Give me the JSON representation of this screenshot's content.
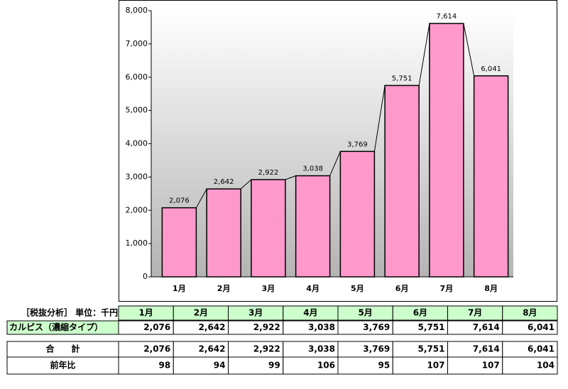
{
  "chart_data": {
    "type": "bar",
    "categories": [
      "1月",
      "2月",
      "3月",
      "4月",
      "5月",
      "6月",
      "7月",
      "8月"
    ],
    "values": [
      2076,
      2642,
      2922,
      3038,
      3769,
      5751,
      7614,
      6041
    ],
    "value_labels": [
      "2,076",
      "2,642",
      "2,922",
      "3,038",
      "3,769",
      "5,751",
      "7,614",
      "6,041"
    ],
    "color": "#ff99cc",
    "ylim": [
      0,
      8000
    ],
    "yticks": [
      0,
      {
        "value": 1000,
        "label": "1,000"
      },
      {
        "value": 2000,
        "label": "2,000"
      },
      {
        "value": 3000,
        "label": "3,000"
      },
      {
        "value": 4000,
        "label": "4,000"
      },
      {
        "value": 5000,
        "label": "5,000"
      },
      {
        "value": 6000,
        "label": "6,000"
      },
      {
        "value": 7000,
        "label": "7,000"
      },
      {
        "value": 8000,
        "label": "8,000"
      }
    ],
    "grid": false
  },
  "table": {
    "header_label": "［税抜分析］ 単位：千円",
    "columns": [
      "1月",
      "2月",
      "3月",
      "4月",
      "5月",
      "6月",
      "7月",
      "8月"
    ],
    "rows": [
      {
        "label": "カルピス（濃縮タイプ）",
        "values": [
          "2,076",
          "2,642",
          "2,922",
          "3,038",
          "3,769",
          "5,751",
          "7,614",
          "6,041"
        ]
      },
      {
        "label": "合　　計",
        "values": [
          "2,076",
          "2,642",
          "2,922",
          "3,038",
          "3,769",
          "5,751",
          "7,614",
          "6,041"
        ]
      },
      {
        "label": "前年比",
        "values": [
          "98",
          "94",
          "99",
          "106",
          "95",
          "107",
          "107",
          "104"
        ]
      }
    ]
  }
}
